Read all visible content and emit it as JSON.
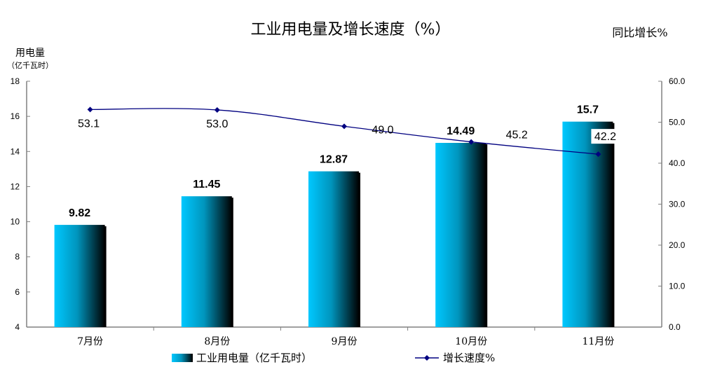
{
  "chart_data": {
    "type": "bar+line",
    "title": "工业用电量及增长速度（%）",
    "categories": [
      "7月份",
      "8月份",
      "9月份",
      "10月份",
      "11月份"
    ],
    "series": [
      {
        "name": "工业用电量（亿千瓦时）",
        "type": "bar",
        "axis": "left",
        "values": [
          9.82,
          11.45,
          12.87,
          14.49,
          15.7
        ],
        "labels": [
          "9.82",
          "11.45",
          "12.87",
          "14.49",
          "15.7"
        ]
      },
      {
        "name": "增长速度%",
        "type": "line",
        "axis": "right",
        "values": [
          53.1,
          53.0,
          49.0,
          45.2,
          42.2
        ],
        "labels": [
          "53.1",
          "53.0",
          "49.0",
          "45.2",
          "42.2"
        ]
      }
    ],
    "left_axis": {
      "label_line1": "用电量",
      "label_line2": "（亿千瓦时）",
      "ylim": [
        4,
        18
      ],
      "ticks": [
        "4",
        "6",
        "8",
        "10",
        "12",
        "14",
        "16",
        "18"
      ]
    },
    "right_axis": {
      "label": "同比增长%",
      "ylim": [
        0,
        60
      ],
      "ticks": [
        "0.0",
        "10.0",
        "20.0",
        "30.0",
        "40.0",
        "50.0",
        "60.0"
      ]
    },
    "grid": false,
    "legend_position": "bottom",
    "colors": {
      "bar_start": "#00c8ff",
      "bar_end": "#000000",
      "line": "#000080",
      "axis": "#808080"
    }
  }
}
